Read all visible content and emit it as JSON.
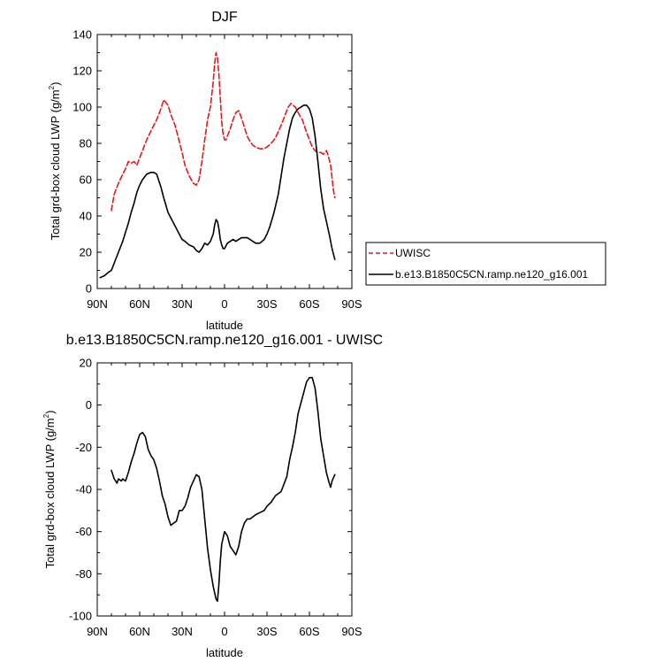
{
  "chart_data": [
    {
      "type": "line",
      "title": "DJF",
      "xlabel": "latitude",
      "ylabel": "Total grd-box cloud LWP (g/m",
      "ylabel_sup": "2",
      "ylabel_close": ")",
      "xlim": [
        90,
        -90
      ],
      "ylim": [
        0,
        140
      ],
      "x_ticks": [
        90,
        60,
        30,
        0,
        -30,
        -60,
        -90
      ],
      "x_tick_labels": [
        "90N",
        "60N",
        "30N",
        "0",
        "30S",
        "60S",
        "90S"
      ],
      "y_ticks": [
        0,
        20,
        40,
        60,
        80,
        100,
        120,
        140
      ],
      "y_tick_labels": [
        "0",
        "20",
        "40",
        "60",
        "80",
        "100",
        "120",
        "140"
      ],
      "legend_position": "right, outside plot",
      "series": [
        {
          "name": "UWISC",
          "color": "#e31a1c",
          "dash": "dashed",
          "x": [
            80,
            78,
            75,
            72,
            70,
            68,
            66,
            64,
            62,
            60,
            58,
            55,
            52,
            50,
            48,
            45,
            43,
            40,
            38,
            35,
            32,
            30,
            28,
            25,
            22,
            20,
            18,
            16,
            14,
            12,
            10,
            8,
            7,
            6,
            5,
            4,
            3,
            2,
            1,
            0,
            -1,
            -2,
            -4,
            -6,
            -8,
            -10,
            -12,
            -14,
            -16,
            -18,
            -20,
            -22,
            -25,
            -28,
            -30,
            -33,
            -36,
            -40,
            -43,
            -45,
            -47,
            -50,
            -52,
            -55,
            -58,
            -60,
            -62,
            -64,
            -66,
            -68,
            -70,
            -72,
            -73,
            -75,
            -77,
            -78
          ],
          "y": [
            43,
            52,
            58,
            63,
            66,
            70,
            69,
            70,
            68,
            72,
            76,
            82,
            87,
            90,
            93,
            99,
            104,
            101,
            96,
            90,
            81,
            75,
            68,
            62,
            58,
            57,
            60,
            70,
            82,
            93,
            100,
            114,
            124,
            130,
            127,
            118,
            105,
            92,
            85,
            82,
            82,
            84,
            88,
            93,
            97,
            98,
            94,
            89,
            84,
            81,
            79,
            78,
            77,
            77,
            78,
            80,
            83,
            90,
            96,
            100,
            102,
            100,
            97,
            93,
            86,
            82,
            78,
            76,
            75,
            75,
            74,
            76,
            74,
            68,
            54,
            50
          ]
        },
        {
          "name": "b.e13.B1850C5CN.ramp.ne120_g16.001",
          "color": "#000000",
          "dash": "solid",
          "x": [
            88,
            85,
            82,
            80,
            78,
            75,
            72,
            70,
            68,
            66,
            64,
            62,
            60,
            58,
            55,
            52,
            50,
            48,
            45,
            43,
            40,
            38,
            36,
            34,
            32,
            30,
            28,
            25,
            22,
            20,
            18,
            16,
            14,
            12,
            10,
            8,
            7,
            6,
            5,
            4,
            3,
            2,
            1,
            0,
            -2,
            -4,
            -6,
            -8,
            -10,
            -12,
            -14,
            -16,
            -18,
            -20,
            -22,
            -25,
            -28,
            -30,
            -32,
            -35,
            -38,
            -40,
            -42,
            -44,
            -46,
            -48,
            -50,
            -52,
            -54,
            -56,
            -58,
            -60,
            -62,
            -64,
            -66,
            -68,
            -70,
            -72,
            -74,
            -76,
            -78
          ],
          "y": [
            6,
            7,
            9,
            10,
            14,
            20,
            26,
            31,
            36,
            42,
            47,
            53,
            57,
            60,
            63,
            64,
            64,
            63,
            56,
            50,
            42,
            39,
            36,
            33,
            30,
            27,
            26,
            24,
            23,
            21,
            20,
            22,
            25,
            24,
            26,
            30,
            35,
            38,
            37,
            33,
            27,
            24,
            22,
            22,
            25,
            26,
            27,
            26,
            27,
            28,
            28,
            28,
            27,
            26,
            25,
            25,
            27,
            30,
            34,
            42,
            52,
            62,
            72,
            80,
            88,
            94,
            97,
            99,
            100,
            101,
            101,
            99,
            94,
            84,
            70,
            55,
            44,
            37,
            30,
            22,
            16
          ]
        }
      ]
    },
    {
      "type": "line",
      "title": "b.e13.B1850C5CN.ramp.ne120_g16.001 - UWISC",
      "xlabel": "latitude",
      "ylabel": "Total grd-box cloud LWP (g/m",
      "ylabel_sup": "2",
      "ylabel_close": ")",
      "xlim": [
        90,
        -90
      ],
      "ylim": [
        -100,
        20
      ],
      "x_ticks": [
        90,
        60,
        30,
        0,
        -30,
        -60,
        -90
      ],
      "x_tick_labels": [
        "90N",
        "60N",
        "30N",
        "0",
        "30S",
        "60S",
        "90S"
      ],
      "y_ticks": [
        -100,
        -80,
        -60,
        -40,
        -20,
        0,
        20
      ],
      "y_tick_labels": [
        "-100",
        "-80",
        "-60",
        "-40",
        "-20",
        "0",
        "20"
      ],
      "series": [
        {
          "color": "#000000",
          "dash": "solid",
          "x": [
            80,
            78,
            76,
            75,
            73,
            72,
            70,
            68,
            66,
            64,
            62,
            60,
            58,
            56,
            54,
            52,
            50,
            48,
            46,
            44,
            42,
            40,
            38,
            36,
            34,
            32,
            30,
            28,
            26,
            24,
            22,
            20,
            18,
            16,
            14,
            12,
            10,
            8,
            6,
            5,
            4,
            3,
            2,
            0,
            -2,
            -4,
            -6,
            -8,
            -10,
            -12,
            -14,
            -16,
            -18,
            -20,
            -22,
            -25,
            -28,
            -30,
            -33,
            -36,
            -40,
            -44,
            -46,
            -48,
            -50,
            -52,
            -54,
            -56,
            -58,
            -60,
            -62,
            -64,
            -66,
            -68,
            -70,
            -72,
            -74,
            -75,
            -76,
            -78
          ],
          "y": [
            -31,
            -35,
            -37,
            -35,
            -36,
            -35,
            -36,
            -32,
            -27,
            -23,
            -18,
            -14,
            -13,
            -15,
            -21,
            -24,
            -26,
            -30,
            -36,
            -43,
            -47,
            -53,
            -57,
            -56,
            -55,
            -50,
            -50,
            -48,
            -44,
            -39,
            -36,
            -33,
            -34,
            -40,
            -54,
            -68,
            -78,
            -86,
            -92,
            -93,
            -85,
            -74,
            -66,
            -60,
            -62,
            -67,
            -69,
            -71,
            -67,
            -60,
            -56,
            -54,
            -54,
            -53,
            -52,
            -51,
            -50,
            -48,
            -46,
            -43,
            -41,
            -34,
            -26,
            -20,
            -13,
            -4,
            1,
            6,
            11,
            13,
            13,
            8,
            -3,
            -16,
            -24,
            -32,
            -37,
            -39,
            -36,
            -33
          ]
        }
      ]
    }
  ]
}
